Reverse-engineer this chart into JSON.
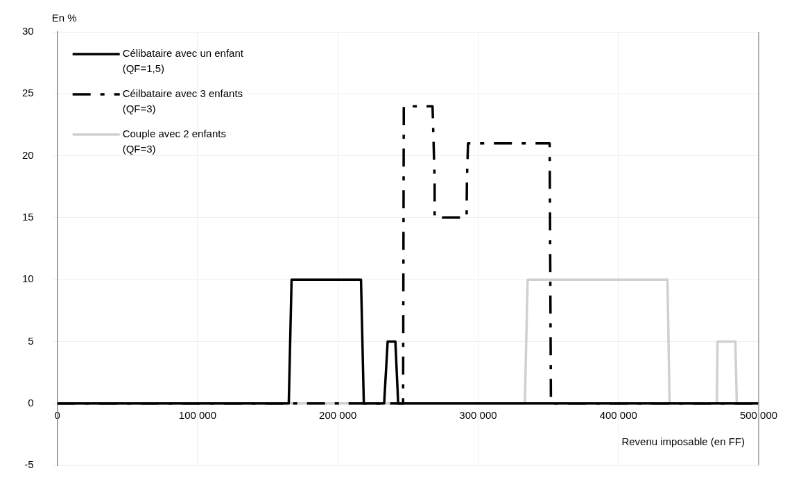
{
  "chart_data": {
    "type": "line",
    "xlabel": "Revenu imposable (en FF)",
    "ylabel": "En %",
    "xlim": [
      0,
      500000
    ],
    "xticks": [
      {
        "value": 0,
        "label": "0"
      },
      {
        "value": 100000,
        "label": "100 000"
      },
      {
        "value": 200000,
        "label": "200 000"
      },
      {
        "value": 300000,
        "label": "300 000"
      },
      {
        "value": 400000,
        "label": "400 000"
      },
      {
        "value": 500000,
        "label": "500 000"
      }
    ],
    "ylim": [
      -5,
      30
    ],
    "yticks": [
      -5,
      0,
      5,
      10,
      15,
      20,
      25,
      30
    ],
    "grid": true,
    "legend": "top left",
    "marker": "none",
    "series": [
      {
        "name": "Célibataire avec un enfant\n(QF=1,5)",
        "color": "#000000",
        "line_style": "solid",
        "x": [
          0,
          165000,
          167000,
          216500,
          218500,
          233000,
          235500,
          241000,
          243000,
          500000
        ],
        "values": [
          0,
          0,
          10,
          10,
          0,
          0,
          5,
          5,
          0,
          0
        ]
      },
      {
        "name": "Céilbataire avec 3 enfants\n(QF=3)",
        "color": "#000000",
        "line_style": "dashed",
        "x": [
          0,
          246500,
          247000,
          267500,
          269000,
          269000,
          291800,
          292000,
          292800,
          351000,
          351900,
          500000
        ],
        "values": [
          0,
          0,
          24,
          24,
          18,
          15,
          15,
          18,
          21,
          21,
          0,
          0
        ]
      },
      {
        "name": "Couple avec 2 enfants\n(QF=3)",
        "color": "#d0d0d0",
        "line_style": "solid",
        "x": [
          0,
          333300,
          335300,
          435000,
          436500,
          470200,
          470700,
          483400,
          484400,
          500000
        ],
        "values": [
          0,
          0,
          10,
          10,
          0,
          0,
          5,
          5,
          0,
          0
        ]
      }
    ]
  }
}
